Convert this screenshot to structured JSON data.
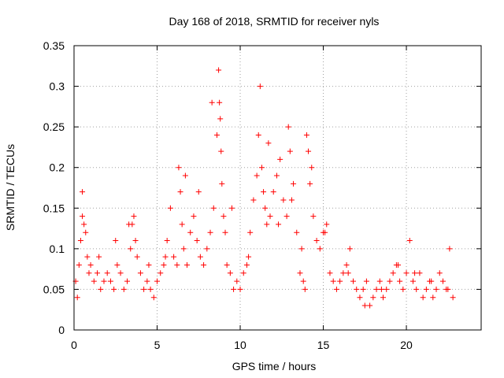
{
  "chart_data": {
    "type": "scatter",
    "title": "Day 168 of 2018, SRMTID for receiver nyls",
    "xlabel": "GPS time / hours",
    "ylabel": "SRMTID / TECUs",
    "xlim": [
      0,
      24.5
    ],
    "ylim": [
      0,
      0.35
    ],
    "xticks": [
      0,
      5,
      10,
      15,
      20
    ],
    "xtick_labels": [
      "0",
      "5",
      "10",
      "15",
      "20"
    ],
    "yticks": [
      0,
      0.05,
      0.1,
      0.15,
      0.2,
      0.25,
      0.3,
      0.35
    ],
    "ytick_labels": [
      "0",
      "0.05",
      "0.1",
      "0.15",
      "0.2",
      "0.25",
      "0.3",
      "0.35"
    ],
    "grid": true,
    "marker": "+",
    "marker_color": "#ff0000",
    "series": [
      {
        "name": "SRMTID",
        "x": [
          0.1,
          0.2,
          0.3,
          0.4,
          0.5,
          0.6,
          0.7,
          0.8,
          0.9,
          1.0,
          1.2,
          1.4,
          1.6,
          1.8,
          2.0,
          2.2,
          2.4,
          2.6,
          2.8,
          3.0,
          3.2,
          3.4,
          3.5,
          3.6,
          3.7,
          3.8,
          4.0,
          4.2,
          4.4,
          4.6,
          4.8,
          5.0,
          5.2,
          5.4,
          5.6,
          5.8,
          6.0,
          6.2,
          6.3,
          6.4,
          6.5,
          6.6,
          6.8,
          7.0,
          7.2,
          7.4,
          7.6,
          7.8,
          8.0,
          8.2,
          8.4,
          8.6,
          8.7,
          8.75,
          8.8,
          8.85,
          8.9,
          9.0,
          9.1,
          9.2,
          9.4,
          9.6,
          9.8,
          10.0,
          10.2,
          10.4,
          10.6,
          10.8,
          11.0,
          11.1,
          11.2,
          11.3,
          11.4,
          11.5,
          11.6,
          11.8,
          12.0,
          12.2,
          12.4,
          12.6,
          12.8,
          12.9,
          13.0,
          13.2,
          13.4,
          13.6,
          13.8,
          13.9,
          14.0,
          14.1,
          14.2,
          14.4,
          14.6,
          14.8,
          15.0,
          15.2,
          15.4,
          15.6,
          15.8,
          16.0,
          16.2,
          16.4,
          16.6,
          16.8,
          17.0,
          17.2,
          17.4,
          17.6,
          17.8,
          18.0,
          18.2,
          18.4,
          18.6,
          18.8,
          19.0,
          19.2,
          19.4,
          19.6,
          19.8,
          20.0,
          20.2,
          20.4,
          20.6,
          20.8,
          21.0,
          21.2,
          21.4,
          21.6,
          21.8,
          22.0,
          22.2,
          22.4,
          22.6,
          22.8,
          0.5,
          1.5,
          2.5,
          3.3,
          4.5,
          5.5,
          6.7,
          7.5,
          8.3,
          9.5,
          10.5,
          11.7,
          12.3,
          13.1,
          13.7,
          14.3,
          15.1,
          16.5,
          17.5,
          18.5,
          19.5,
          20.5,
          21.5,
          22.5
        ],
        "y": [
          0.06,
          0.04,
          0.08,
          0.11,
          0.17,
          0.13,
          0.12,
          0.09,
          0.07,
          0.08,
          0.06,
          0.07,
          0.05,
          0.06,
          0.07,
          0.06,
          0.05,
          0.08,
          0.07,
          0.05,
          0.06,
          0.1,
          0.13,
          0.14,
          0.11,
          0.09,
          0.07,
          0.05,
          0.06,
          0.05,
          0.04,
          0.06,
          0.07,
          0.08,
          0.11,
          0.15,
          0.09,
          0.08,
          0.2,
          0.17,
          0.13,
          0.1,
          0.08,
          0.12,
          0.14,
          0.11,
          0.09,
          0.08,
          0.1,
          0.12,
          0.15,
          0.24,
          0.32,
          0.28,
          0.26,
          0.22,
          0.18,
          0.14,
          0.12,
          0.08,
          0.07,
          0.05,
          0.06,
          0.05,
          0.07,
          0.08,
          0.12,
          0.16,
          0.19,
          0.24,
          0.3,
          0.2,
          0.17,
          0.15,
          0.13,
          0.14,
          0.17,
          0.19,
          0.21,
          0.16,
          0.14,
          0.25,
          0.22,
          0.18,
          0.12,
          0.07,
          0.06,
          0.05,
          0.24,
          0.22,
          0.18,
          0.14,
          0.11,
          0.1,
          0.12,
          0.13,
          0.07,
          0.06,
          0.05,
          0.06,
          0.07,
          0.08,
          0.1,
          0.06,
          0.05,
          0.04,
          0.05,
          0.06,
          0.03,
          0.04,
          0.05,
          0.06,
          0.04,
          0.05,
          0.06,
          0.07,
          0.08,
          0.06,
          0.05,
          0.07,
          0.11,
          0.06,
          0.05,
          0.07,
          0.04,
          0.05,
          0.06,
          0.04,
          0.05,
          0.07,
          0.06,
          0.05,
          0.1,
          0.04,
          0.14,
          0.09,
          0.11,
          0.13,
          0.08,
          0.09,
          0.19,
          0.17,
          0.28,
          0.15,
          0.09,
          0.23,
          0.13,
          0.16,
          0.1,
          0.2,
          0.12,
          0.07,
          0.03,
          0.05,
          0.08,
          0.07,
          0.06,
          0.05
        ]
      }
    ]
  }
}
